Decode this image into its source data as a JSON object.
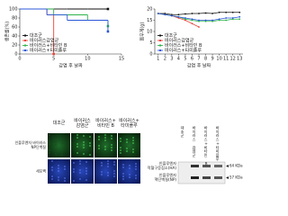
{
  "chart_data": [
    {
      "type": "line",
      "step": true,
      "y_label": "생존률(%)",
      "x_label": "감염 후 날짜",
      "x": [
        0,
        4,
        5,
        7,
        10,
        13
      ],
      "xlim": [
        0,
        15
      ],
      "xticks": [
        0,
        5,
        10,
        15
      ],
      "ylim": [
        0,
        100
      ],
      "yticks": [
        0,
        20,
        40,
        60,
        80,
        100
      ],
      "legend": "lower left",
      "series": [
        {
          "name": "대조군",
          "color": "#111111",
          "values": [
            100,
            100,
            100,
            100,
            100,
            100
          ]
        },
        {
          "name": "바이러스감염군",
          "color": "#e8453c",
          "values": [
            100,
            87,
            0,
            null,
            null,
            null
          ]
        },
        {
          "name": "바이러스+비타민 B",
          "color": "#2db34a",
          "values": [
            100,
            100,
            87,
            87,
            75,
            62
          ]
        },
        {
          "name": "바이러스+타미플루",
          "color": "#2b57d8",
          "values": [
            100,
            87,
            87,
            75,
            75,
            50
          ]
        }
      ]
    },
    {
      "type": "line",
      "step": false,
      "markers": true,
      "y_label": "몸무게(g)",
      "x_label": "감염 후 날짜",
      "x": [
        1,
        2,
        3,
        4,
        5,
        6,
        7,
        8,
        9,
        10,
        11,
        12,
        13
      ],
      "xlim": [
        0.5,
        13.5
      ],
      "xticks": [
        1,
        2,
        3,
        4,
        5,
        6,
        7,
        8,
        9,
        10,
        11,
        12,
        13
      ],
      "ylim": [
        0,
        20
      ],
      "yticks": [
        0,
        5,
        10,
        15,
        20
      ],
      "legend": "lower left",
      "series": [
        {
          "name": "대조군",
          "color": "#111111",
          "values": [
            18,
            18,
            17.5,
            17.5,
            17.8,
            18,
            18,
            18.2,
            18,
            18.5,
            18.5,
            18.5,
            18.5
          ]
        },
        {
          "name": "바이러스감염군",
          "color": "#e8453c",
          "values": [
            18,
            17.5,
            17,
            16,
            15,
            13.5,
            12,
            null,
            null,
            null,
            null,
            null,
            null
          ]
        },
        {
          "name": "바이러스+비타민 B",
          "color": "#2db34a",
          "values": [
            18,
            17.5,
            17,
            16.5,
            15.5,
            15,
            14.5,
            14.5,
            14.5,
            15,
            15,
            15.5,
            15.5
          ]
        },
        {
          "name": "바이러스+타미플루",
          "color": "#2b57d8",
          "values": [
            18,
            17.5,
            17,
            16.5,
            16,
            15.5,
            15,
            15,
            15,
            15.5,
            16,
            16,
            16.5
          ]
        }
      ]
    }
  ],
  "micrograph": {
    "columns": [
      [
        "대조군"
      ],
      [
        "바이러스",
        "감염군"
      ],
      [
        "바이러스+",
        "비타민 B"
      ],
      [
        "바이러스+",
        "타미플루"
      ]
    ],
    "rows": [
      [
        "인플루엔자 바이러스",
        "NP단백질"
      ],
      [
        "세포핵"
      ]
    ]
  },
  "blot": {
    "lanes": [
      "대조군",
      "바이러스 감염군",
      "바이러스+비타민 B",
      "바이러스+타미플루"
    ],
    "rows": [
      [
        "인플루엔자",
        "적혈구응집소(HA)"
      ],
      [
        "인플루엔자",
        "핵단백질(NP)"
      ]
    ],
    "markers": [
      "64 KDa",
      "57 KDa"
    ]
  }
}
